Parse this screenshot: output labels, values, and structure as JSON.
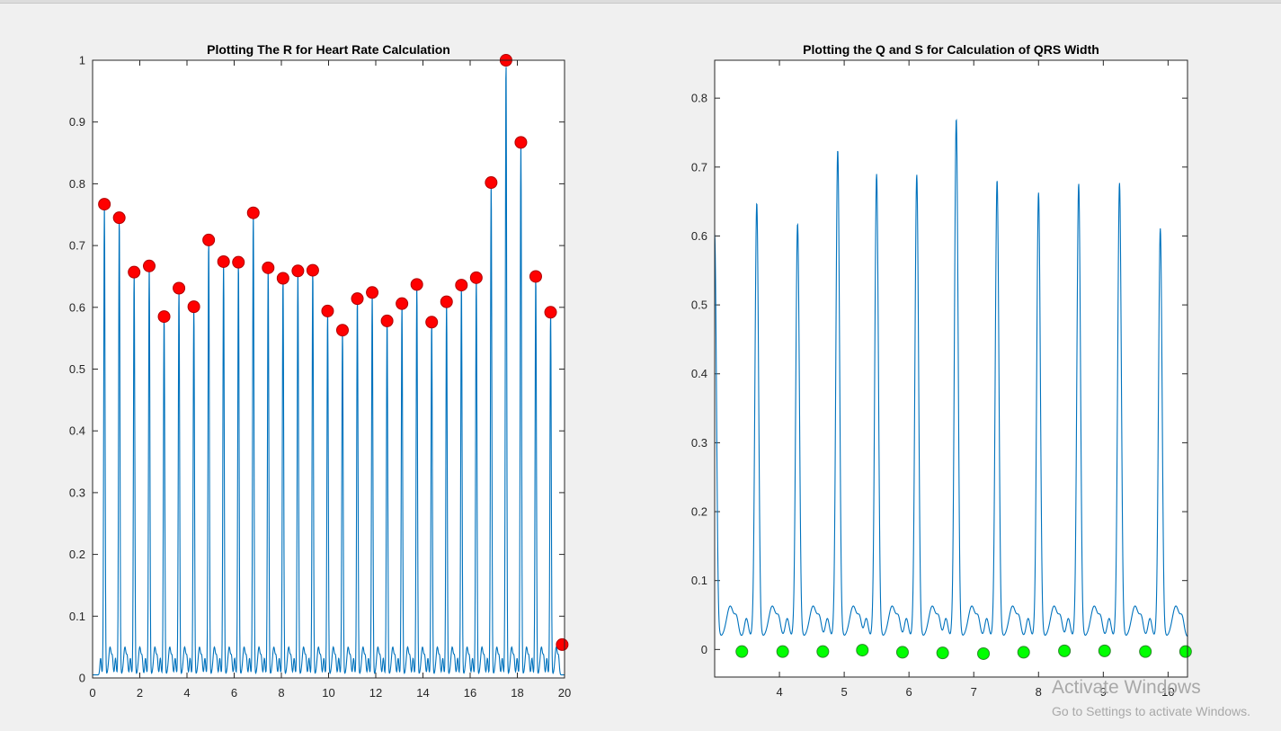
{
  "watermark": {
    "title": "Activate Windows",
    "subtitle": "Go to Settings to activate Windows."
  },
  "colors": {
    "line": "#0072bd",
    "r_marker": "#ff0000",
    "qs_marker": "#00ff00",
    "marker_edge_r": "#b00000",
    "marker_edge_qs": "#2a8a2a",
    "axes": "#262626"
  },
  "chart_data": [
    {
      "type": "line",
      "title": "Plotting The R for Heart Rate Calculation",
      "xlabel": "",
      "ylabel": "",
      "xlim": [
        0,
        20
      ],
      "ylim": [
        0,
        1
      ],
      "xticks": [
        0,
        2,
        4,
        6,
        8,
        10,
        12,
        14,
        16,
        18,
        20
      ],
      "yticks": [
        0,
        0.1,
        0.2,
        0.3,
        0.4,
        0.5,
        0.6,
        0.7,
        0.8,
        0.9,
        1
      ],
      "xtick_labels": [
        "0",
        "2",
        "4",
        "6",
        "8",
        "10",
        "12",
        "14",
        "16",
        "18",
        "20"
      ],
      "ytick_labels": [
        "0",
        "0.1",
        "0.2",
        "0.3",
        "0.4",
        "0.5",
        "0.6",
        "0.7",
        "0.8",
        "0.9",
        "1"
      ],
      "grid": false,
      "series": [
        {
          "kind": "ecg-line",
          "baseline": 0.005,
          "twave": 0.045,
          "first_beat_offset": -0.44
        },
        {
          "kind": "markers",
          "marker": "circle",
          "x": [
            0.5,
            1.13,
            1.76,
            2.4,
            3.03,
            3.66,
            4.29,
            4.92,
            5.55,
            6.18,
            6.81,
            7.44,
            8.07,
            8.7,
            9.33,
            9.96,
            10.59,
            11.22,
            11.85,
            12.48,
            13.11,
            13.74,
            14.37,
            15.0,
            15.63,
            16.26,
            16.89,
            17.52,
            18.15,
            18.78,
            19.41,
            19.9
          ],
          "y": [
            0.767,
            0.745,
            0.657,
            0.667,
            0.585,
            0.631,
            0.601,
            0.709,
            0.674,
            0.673,
            0.753,
            0.664,
            0.647,
            0.659,
            0.66,
            0.594,
            0.563,
            0.614,
            0.624,
            0.578,
            0.606,
            0.637,
            0.576,
            0.609,
            0.636,
            0.648,
            0.802,
            1.0,
            0.867,
            0.65,
            0.592,
            0.054
          ]
        }
      ]
    },
    {
      "type": "line",
      "title": "Plotting the Q and S for Calculation of QRS Width",
      "xlabel": "",
      "ylabel": "",
      "xlim": [
        3.0,
        10.3
      ],
      "ylim": [
        -0.04,
        0.855
      ],
      "xticks": [
        4,
        5,
        6,
        7,
        8,
        9,
        10
      ],
      "yticks": [
        0,
        0.1,
        0.2,
        0.3,
        0.4,
        0.5,
        0.6,
        0.7,
        0.8
      ],
      "xtick_labels": [
        "4",
        "5",
        "6",
        "7",
        "8",
        "9",
        "10"
      ],
      "ytick_labels": [
        "0",
        "0.1",
        "0.2",
        "0.3",
        "0.4",
        "0.5",
        "0.6",
        "0.7",
        "0.8"
      ],
      "grid": false,
      "series": [
        {
          "kind": "ecg-line",
          "baseline": 0.018,
          "twave": 0.045,
          "peaks_x": [
            3.0,
            3.65,
            4.28,
            4.9,
            5.5,
            6.12,
            6.73,
            7.36,
            8.0,
            8.62,
            9.25,
            9.88
          ],
          "peaks_y": [
            0.585,
            0.63,
            0.6,
            0.707,
            0.672,
            0.671,
            0.752,
            0.663,
            0.645,
            0.658,
            0.659,
            0.593
          ]
        },
        {
          "kind": "markers",
          "marker": "circle",
          "x": [
            3.42,
            4.05,
            4.67,
            5.28,
            5.9,
            6.52,
            7.15,
            7.77,
            8.4,
            9.02,
            9.65,
            10.27
          ],
          "y": [
            -0.003,
            -0.003,
            -0.003,
            -0.001,
            -0.004,
            -0.005,
            -0.006,
            -0.004,
            -0.002,
            -0.002,
            -0.003,
            -0.003
          ]
        }
      ]
    }
  ]
}
